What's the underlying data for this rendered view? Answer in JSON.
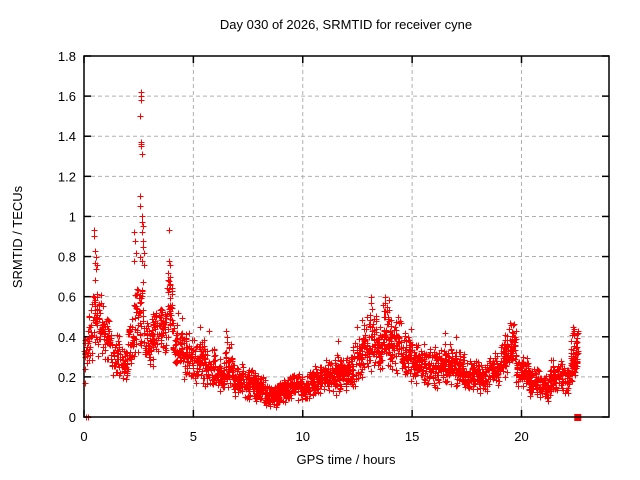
{
  "chart_data": {
    "type": "scatter",
    "title": "Day 030 of 2026, SRMTID for receiver cyne",
    "xlabel": "GPS time / hours",
    "ylabel": "SRMTID / TECUs",
    "xlim": [
      0,
      24
    ],
    "ylim": [
      0,
      1.8
    ],
    "grid": true,
    "legend": "none",
    "marker": "plus",
    "marker_color": "#ff0000",
    "marker_size": 7,
    "grid_color": "#b0b0b0",
    "axis_color": "#000000",
    "background_color": "#ffffff",
    "xticks": [
      {
        "v": 0,
        "label": "0"
      },
      {
        "v": 5,
        "label": "5"
      },
      {
        "v": 10,
        "label": "10"
      },
      {
        "v": 15,
        "label": "15"
      },
      {
        "v": 20,
        "label": "20"
      }
    ],
    "yticks": [
      {
        "v": 0,
        "label": "0"
      },
      {
        "v": 0.2,
        "label": "0.2"
      },
      {
        "v": 0.4,
        "label": "0.4"
      },
      {
        "v": 0.6,
        "label": "0.6"
      },
      {
        "v": 0.8,
        "label": "0.8"
      },
      {
        "v": 1.0,
        "label": "1"
      },
      {
        "v": 1.2,
        "label": "1.2"
      },
      {
        "v": 1.4,
        "label": "1.4"
      },
      {
        "v": 1.6,
        "label": "1.6"
      },
      {
        "v": 1.8,
        "label": "1.8"
      }
    ],
    "band_bins": [
      [
        0.0,
        0.15,
        0.15,
        0.45,
        90
      ],
      [
        0.15,
        0.4,
        0.22,
        0.62,
        100
      ],
      [
        0.4,
        0.65,
        0.3,
        0.73,
        130
      ],
      [
        0.65,
        0.9,
        0.28,
        0.62,
        120
      ],
      [
        0.9,
        1.2,
        0.24,
        0.5,
        100
      ],
      [
        1.2,
        1.6,
        0.2,
        0.45,
        100
      ],
      [
        1.6,
        2.0,
        0.16,
        0.38,
        100
      ],
      [
        2.0,
        2.3,
        0.2,
        0.5,
        100
      ],
      [
        2.3,
        2.5,
        0.25,
        0.68,
        110
      ],
      [
        2.5,
        2.75,
        0.3,
        0.72,
        120
      ],
      [
        2.75,
        3.1,
        0.22,
        0.52,
        110
      ],
      [
        3.1,
        3.45,
        0.22,
        0.58,
        110
      ],
      [
        3.45,
        3.8,
        0.25,
        0.6,
        110
      ],
      [
        3.8,
        4.05,
        0.3,
        0.75,
        120
      ],
      [
        4.05,
        4.5,
        0.2,
        0.5,
        110
      ],
      [
        4.5,
        5.0,
        0.17,
        0.44,
        110
      ],
      [
        5.0,
        5.5,
        0.15,
        0.4,
        110
      ],
      [
        5.5,
        6.0,
        0.13,
        0.36,
        110
      ],
      [
        6.0,
        6.4,
        0.12,
        0.3,
        110
      ],
      [
        6.4,
        6.8,
        0.13,
        0.38,
        110
      ],
      [
        6.8,
        7.3,
        0.1,
        0.28,
        120
      ],
      [
        7.3,
        7.8,
        0.08,
        0.25,
        130
      ],
      [
        7.8,
        8.3,
        0.06,
        0.22,
        130
      ],
      [
        8.3,
        8.9,
        0.04,
        0.18,
        130
      ],
      [
        8.9,
        9.4,
        0.06,
        0.2,
        130
      ],
      [
        9.4,
        9.9,
        0.08,
        0.22,
        120
      ],
      [
        9.9,
        10.3,
        0.07,
        0.21,
        120
      ],
      [
        10.3,
        10.8,
        0.1,
        0.26,
        120
      ],
      [
        10.8,
        11.3,
        0.12,
        0.3,
        120
      ],
      [
        11.3,
        11.8,
        0.1,
        0.33,
        120
      ],
      [
        11.8,
        12.3,
        0.12,
        0.32,
        120
      ],
      [
        12.3,
        12.7,
        0.15,
        0.42,
        120
      ],
      [
        12.7,
        13.05,
        0.2,
        0.52,
        120
      ],
      [
        13.05,
        13.35,
        0.22,
        0.56,
        120
      ],
      [
        13.35,
        13.65,
        0.2,
        0.46,
        120
      ],
      [
        13.65,
        13.95,
        0.25,
        0.6,
        120
      ],
      [
        13.95,
        14.5,
        0.2,
        0.5,
        120
      ],
      [
        14.5,
        15.0,
        0.17,
        0.43,
        120
      ],
      [
        15.0,
        15.6,
        0.15,
        0.38,
        120
      ],
      [
        15.6,
        16.2,
        0.14,
        0.36,
        120
      ],
      [
        16.2,
        16.8,
        0.15,
        0.4,
        120
      ],
      [
        16.8,
        17.4,
        0.14,
        0.34,
        120
      ],
      [
        17.4,
        18.0,
        0.12,
        0.3,
        120
      ],
      [
        18.0,
        18.5,
        0.1,
        0.28,
        120
      ],
      [
        18.5,
        19.0,
        0.14,
        0.34,
        120
      ],
      [
        19.0,
        19.35,
        0.18,
        0.42,
        120
      ],
      [
        19.35,
        19.75,
        0.24,
        0.48,
        130
      ],
      [
        19.75,
        20.3,
        0.14,
        0.32,
        120
      ],
      [
        20.3,
        20.8,
        0.1,
        0.26,
        120
      ],
      [
        20.8,
        21.3,
        0.08,
        0.22,
        120
      ],
      [
        21.3,
        21.9,
        0.12,
        0.3,
        120
      ],
      [
        21.9,
        22.2,
        0.1,
        0.28,
        120
      ],
      [
        22.2,
        22.45,
        0.12,
        0.42,
        150
      ],
      [
        22.45,
        22.6,
        0.2,
        0.45,
        150
      ]
    ],
    "spike_points": [
      [
        0.44,
        0.93
      ],
      [
        0.47,
        0.9
      ],
      [
        0.5,
        0.83
      ],
      [
        0.54,
        0.8
      ],
      [
        0.52,
        0.77
      ],
      [
        0.6,
        0.76
      ],
      [
        0.57,
        0.74
      ],
      [
        2.3,
        0.92
      ],
      [
        2.33,
        0.88
      ],
      [
        2.36,
        0.82
      ],
      [
        2.28,
        0.78
      ],
      [
        2.55,
        0.8
      ],
      [
        2.56,
        1.05
      ],
      [
        2.57,
        1.1
      ],
      [
        2.58,
        1.5
      ],
      [
        2.59,
        1.62
      ],
      [
        2.6,
        1.6
      ],
      [
        2.61,
        1.58
      ],
      [
        2.6,
        1.37
      ],
      [
        2.61,
        1.36
      ],
      [
        2.62,
        1.35
      ],
      [
        2.63,
        1.31
      ],
      [
        2.66,
        1.0
      ],
      [
        2.67,
        0.97
      ],
      [
        2.68,
        0.95
      ],
      [
        2.66,
        0.92
      ],
      [
        2.69,
        0.88
      ],
      [
        2.7,
        0.85
      ],
      [
        2.72,
        0.82
      ],
      [
        2.64,
        0.78
      ],
      [
        2.73,
        0.76
      ],
      [
        3.9,
        0.93
      ],
      [
        3.88,
        0.78
      ],
      [
        3.92,
        0.76
      ],
      [
        3.85,
        0.72
      ],
      [
        3.95,
        0.7
      ],
      [
        3.87,
        0.68
      ],
      [
        3.93,
        0.66
      ],
      [
        3.9,
        0.64
      ],
      [
        4.3,
        0.52
      ],
      [
        5.32,
        0.45
      ],
      [
        5.7,
        0.43
      ],
      [
        6.5,
        0.43
      ],
      [
        6.53,
        0.4
      ],
      [
        11.62,
        0.38
      ],
      [
        12.5,
        0.45
      ],
      [
        13.1,
        0.6
      ],
      [
        13.12,
        0.57
      ],
      [
        13.15,
        0.54
      ],
      [
        13.08,
        0.51
      ],
      [
        13.75,
        0.6
      ],
      [
        13.77,
        0.57
      ],
      [
        13.73,
        0.53
      ],
      [
        13.78,
        0.5
      ],
      [
        14.35,
        0.5
      ],
      [
        14.4,
        0.47
      ],
      [
        14.95,
        0.44
      ],
      [
        16.5,
        0.42
      ],
      [
        17.0,
        0.4
      ],
      [
        19.48,
        0.47
      ],
      [
        19.52,
        0.46
      ],
      [
        19.45,
        0.44
      ],
      [
        22.35,
        0.45
      ],
      [
        22.4,
        0.44
      ],
      [
        22.37,
        0.42
      ],
      [
        22.42,
        0.43
      ],
      [
        22.33,
        0.41
      ]
    ],
    "zero_points": [
      [
        0.1,
        0
      ],
      [
        0.18,
        0
      ]
    ],
    "square_points": [
      [
        22.55,
        0
      ]
    ]
  }
}
